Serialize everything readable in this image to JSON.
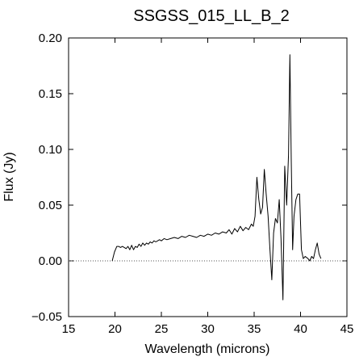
{
  "chart_data": {
    "type": "line",
    "title": "SSGSS_015_LL_B_2",
    "xlabel": "Wavelength (microns)",
    "ylabel": "Flux (Jy)",
    "xlim": [
      15,
      45
    ],
    "ylim": [
      -0.05,
      0.2
    ],
    "x_ticks": [
      15,
      20,
      25,
      30,
      35,
      40,
      45
    ],
    "x_tick_labels": [
      "15",
      "20",
      "25",
      "30",
      "35",
      "40",
      "45"
    ],
    "y_ticks": [
      -0.05,
      0.0,
      0.05,
      0.1,
      0.15,
      0.2
    ],
    "y_tick_labels": [
      "−0.05",
      "0.00",
      "0.05",
      "0.10",
      "0.15",
      "0.20"
    ],
    "reference_line": {
      "y": 0.0,
      "style": "dotted"
    },
    "grid": false,
    "series": [
      {
        "color": "#000000",
        "x": [
          19.7,
          19.95,
          20.2,
          20.4,
          20.6,
          20.8,
          21.0,
          21.2,
          21.4,
          21.6,
          21.8,
          22.0,
          22.2,
          22.4,
          22.6,
          22.8,
          23.0,
          23.2,
          23.4,
          23.6,
          23.8,
          24.0,
          24.2,
          24.4,
          24.6,
          24.8,
          25.0,
          25.3,
          25.6,
          26.0,
          26.4,
          26.8,
          27.2,
          27.6,
          28.0,
          28.4,
          28.8,
          29.2,
          29.6,
          30.0,
          30.4,
          30.8,
          31.2,
          31.6,
          32.0,
          32.3,
          32.6,
          32.9,
          33.2,
          33.5,
          33.8,
          34.1,
          34.4,
          34.7,
          34.9,
          35.1,
          35.3,
          35.5,
          35.7,
          35.9,
          36.1,
          36.3,
          36.5,
          36.7,
          36.9,
          37.1,
          37.3,
          37.5,
          37.7,
          37.9,
          38.1,
          38.3,
          38.5,
          38.7,
          38.85,
          39.0,
          39.15,
          39.3,
          39.5,
          39.7,
          39.9,
          40.1,
          40.3,
          40.5,
          40.8,
          41.0,
          41.2,
          41.4,
          41.6,
          41.8,
          42.0,
          42.2
        ],
        "y": [
          0.0,
          0.008,
          0.013,
          0.013,
          0.012,
          0.013,
          0.012,
          0.011,
          0.013,
          0.01,
          0.014,
          0.01,
          0.013,
          0.012,
          0.015,
          0.013,
          0.016,
          0.014,
          0.016,
          0.015,
          0.017,
          0.016,
          0.018,
          0.017,
          0.018,
          0.019,
          0.018,
          0.02,
          0.019,
          0.02,
          0.021,
          0.02,
          0.022,
          0.021,
          0.023,
          0.022,
          0.021,
          0.023,
          0.022,
          0.024,
          0.023,
          0.025,
          0.024,
          0.026,
          0.025,
          0.028,
          0.024,
          0.029,
          0.026,
          0.031,
          0.027,
          0.03,
          0.028,
          0.033,
          0.031,
          0.04,
          0.075,
          0.055,
          0.042,
          0.048,
          0.082,
          0.06,
          0.04,
          0.01,
          -0.017,
          0.025,
          0.038,
          0.034,
          0.055,
          0.02,
          -0.035,
          0.085,
          0.05,
          0.095,
          0.185,
          0.09,
          0.01,
          0.04,
          0.055,
          0.06,
          0.06,
          0.01,
          0.002,
          0.004,
          0.002,
          0.0,
          0.004,
          0.002,
          0.01,
          0.016,
          0.006,
          0.002
        ]
      }
    ]
  }
}
